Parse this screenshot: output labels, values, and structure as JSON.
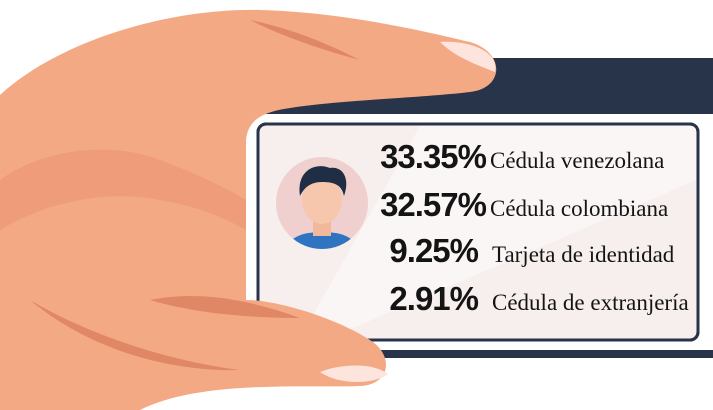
{
  "items": [
    {
      "value": "33.35%",
      "label": "Cédula venezolana"
    },
    {
      "value": "32.57%",
      "label": "Cédula colombiana"
    },
    {
      "value": "9.25%",
      "label": "Tarjeta de identidad"
    },
    {
      "value": "2.91%",
      "label": "Cédula de extranjería"
    }
  ]
}
